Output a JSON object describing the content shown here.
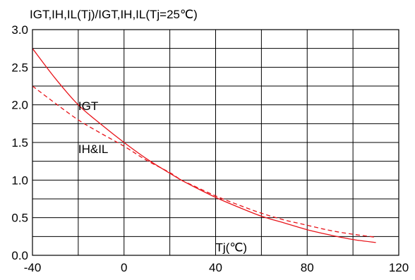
{
  "chart_data": {
    "type": "line",
    "ylabel": "IGT,IH,IL(Tj)/IGT,IH,IL(Tj=25℃)",
    "xlabel": "Tj(℃)",
    "xlim": [
      -40,
      120
    ],
    "ylim": [
      0,
      3.0
    ],
    "x_ticks": [
      "-40",
      "0",
      "40",
      "80",
      "120"
    ],
    "y_ticks": [
      "0.0",
      "0.5",
      "1.0",
      "1.5",
      "2.0",
      "2.5",
      "3.0"
    ],
    "x_grid_step": 20,
    "y_grid_step": 0.25,
    "grid": true,
    "series": [
      {
        "name": "IGT",
        "style": "solid",
        "color": "#e8141a",
        "x": [
          -40,
          -30,
          -20,
          -10,
          0,
          10,
          20,
          25,
          30,
          40,
          50,
          60,
          70,
          80,
          90,
          100,
          110
        ],
        "y": [
          2.75,
          2.35,
          2.0,
          1.74,
          1.5,
          1.28,
          1.09,
          1.0,
          0.92,
          0.77,
          0.64,
          0.52,
          0.43,
          0.34,
          0.27,
          0.21,
          0.17
        ]
      },
      {
        "name": "IH&IL",
        "style": "dashed",
        "color": "#e8141a",
        "x": [
          -40,
          -30,
          -20,
          -10,
          0,
          10,
          20,
          25,
          30,
          40,
          50,
          60,
          70,
          80,
          90,
          100,
          110
        ],
        "y": [
          2.25,
          2.02,
          1.8,
          1.62,
          1.45,
          1.26,
          1.1,
          1.0,
          0.93,
          0.79,
          0.67,
          0.56,
          0.47,
          0.4,
          0.33,
          0.28,
          0.24
        ]
      }
    ],
    "annotations": [
      {
        "text": "IGT",
        "x": -20,
        "y": 1.93
      },
      {
        "text": "IH&IL",
        "x": -20,
        "y": 1.36
      },
      {
        "text": "Tj(℃)",
        "x": 40,
        "y": 0.05
      }
    ]
  }
}
